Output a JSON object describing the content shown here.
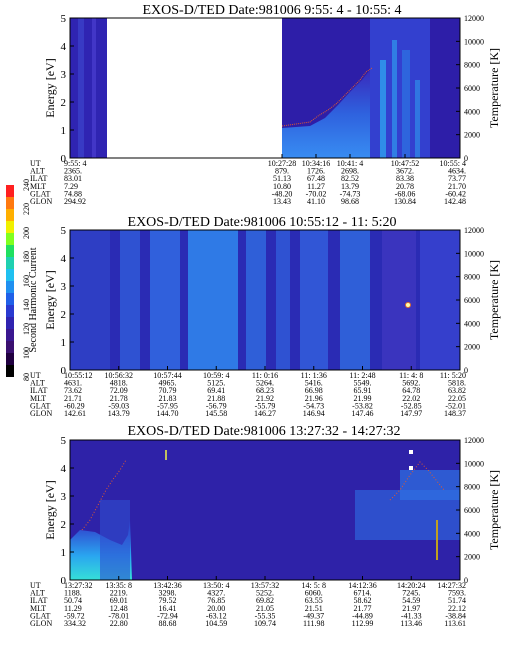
{
  "colorbar": {
    "label": "Second Harmonic Current",
    "ticks": [
      "240",
      "220",
      "200",
      "180",
      "160",
      "140",
      "120",
      "100",
      "80"
    ]
  },
  "row_labels": [
    "UT",
    "ALT",
    "ILAT",
    "MLT",
    "GLAT",
    "GLON"
  ],
  "chart_data": [
    {
      "type": "heatmap",
      "title": "EXOS-D/TED   Date:981006  9:55: 4 - 10:55: 4",
      "ylabel": "Energy [eV]",
      "y2label": "Temperature [K]",
      "ylim": [
        0,
        5
      ],
      "y2lim": [
        0,
        12000
      ],
      "yticks": [
        "0",
        "1",
        "2",
        "3",
        "4",
        "5"
      ],
      "y2ticks": [
        "0",
        "2000",
        "4000",
        "6000",
        "8000",
        "10000",
        "12000"
      ],
      "x_ut": [
        "9:55: 4",
        "10:27:28",
        "10:34:16",
        "10:41: 4",
        "10:47:52",
        "10:55: 4"
      ],
      "rows": {
        "UT": [
          "9:55: 4",
          "10:27:28",
          "10:34:16",
          "10:41: 4",
          "10:47:52",
          "10:55: 4"
        ],
        "ALT": [
          "2365.",
          "879.",
          "1726.",
          "2698.",
          "3672.",
          "4634."
        ],
        "ILAT": [
          "83.01",
          "51.13",
          "67.48",
          "82.52",
          "83.38",
          "73.77"
        ],
        "MLT": [
          "7.29",
          "10.80",
          "11.27",
          "13.79",
          "20.78",
          "21.70"
        ],
        "GLAT": [
          "74.88",
          "-48.20",
          "-70.02",
          "-74.73",
          "-68.06",
          "-60.42"
        ],
        "GLON": [
          "294.92",
          "13.43",
          "41.10",
          "98.68",
          "130.84",
          "142.48"
        ]
      }
    },
    {
      "type": "heatmap",
      "title": "EXOS-D/TED   Date:981006  10:55:12 - 11: 5:20",
      "ylabel": "Energy [eV]",
      "y2label": "Temperature [K]",
      "ylim": [
        0,
        5
      ],
      "y2lim": [
        0,
        12000
      ],
      "yticks": [
        "0",
        "1",
        "2",
        "3",
        "4",
        "5"
      ],
      "y2ticks": [
        "0",
        "2000",
        "4000",
        "6000",
        "8000",
        "10000",
        "12000"
      ],
      "rows": {
        "UT": [
          "10:55:12",
          "10:56:32",
          "10:57:44",
          "10:59: 4",
          "11: 0:16",
          "11: 1:36",
          "11: 2:48",
          "11: 4: 8",
          "11: 5:20"
        ],
        "ALT": [
          "4631.",
          "4818.",
          "4965.",
          "5125.",
          "5264.",
          "5416.",
          "5549.",
          "5692.",
          "5818."
        ],
        "ILAT": [
          "73.62",
          "72.09",
          "70.79",
          "69.41",
          "68.23",
          "66.98",
          "65.91",
          "64.78",
          "63.82"
        ],
        "MLT": [
          "21.71",
          "21.78",
          "21.83",
          "21.88",
          "21.92",
          "21.96",
          "21.99",
          "22.02",
          "22.05"
        ],
        "GLAT": [
          "-60.29",
          "-59.03",
          "-57.95",
          "-56.79",
          "-55.79",
          "-54.73",
          "-53.82",
          "-52.85",
          "-52.01"
        ],
        "GLON": [
          "142.61",
          "143.79",
          "144.70",
          "145.58",
          "146.27",
          "146.94",
          "147.46",
          "147.97",
          "148.37"
        ]
      }
    },
    {
      "type": "heatmap",
      "title": "EXOS-D/TED   Date:981006  13:27:32 - 14:27:32",
      "ylabel": "Energy [eV]",
      "y2label": "Temperature [K]",
      "ylim": [
        0,
        5
      ],
      "y2lim": [
        0,
        12000
      ],
      "yticks": [
        "0",
        "1",
        "2",
        "3",
        "4",
        "5"
      ],
      "y2ticks": [
        "0",
        "2000",
        "4000",
        "6000",
        "8000",
        "10000",
        "12000"
      ],
      "rows": {
        "UT": [
          "13:27:32",
          "13:35: 8",
          "13:42:36",
          "13:50: 4",
          "13:57:32",
          "14: 5: 8",
          "14:12:36",
          "14:20:24",
          "14:27:32"
        ],
        "ALT": [
          "1188.",
          "2219.",
          "3298.",
          "4327.",
          "5252.",
          "6060.",
          "6714.",
          "7245.",
          "7593."
        ],
        "ILAT": [
          "50.74",
          "69.01",
          "79.52",
          "76.85",
          "69.82",
          "63.55",
          "58.62",
          "54.59",
          "51.74"
        ],
        "MLT": [
          "11.29",
          "12.48",
          "16.41",
          "20.00",
          "21.05",
          "21.51",
          "21.77",
          "21.97",
          "22.12"
        ],
        "GLAT": [
          "-59.72",
          "-78.01",
          "-72.94",
          "-63.12",
          "-55.35",
          "-49.37",
          "-44.89",
          "-41.33",
          "-38.84"
        ],
        "GLON": [
          "334.32",
          "22.80",
          "88.68",
          "104.59",
          "109.74",
          "111.98",
          "112.99",
          "113.46",
          "113.61"
        ]
      }
    }
  ]
}
